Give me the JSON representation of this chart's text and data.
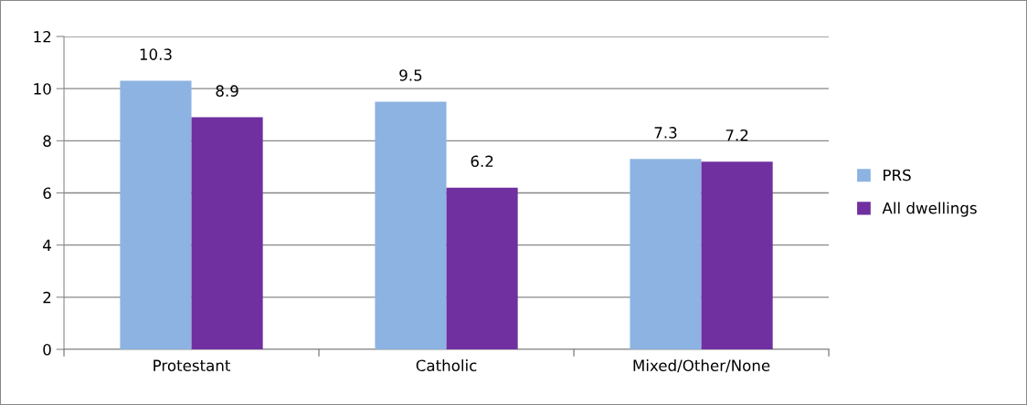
{
  "chart_data": {
    "type": "bar",
    "categories": [
      "Protestant",
      "Catholic",
      "Mixed/Other/None"
    ],
    "series": [
      {
        "name": "PRS",
        "color": "#8db3e2",
        "values": [
          10.3,
          9.5,
          7.3
        ]
      },
      {
        "name": "All dwellings",
        "color": "#7030a0",
        "values": [
          8.9,
          6.2,
          7.2
        ]
      }
    ],
    "ylim": [
      0,
      12
    ],
    "yticks": [
      0,
      2,
      4,
      6,
      8,
      10,
      12
    ],
    "grid": "y",
    "legend": "right",
    "data_labels": true
  }
}
